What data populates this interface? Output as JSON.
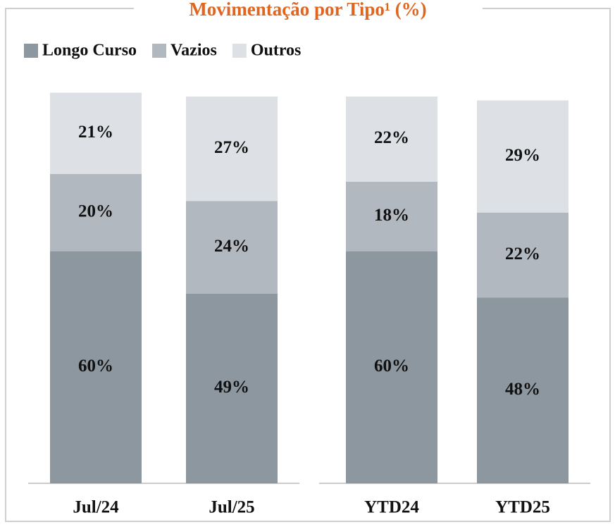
{
  "chart_data": {
    "type": "stacked_bar",
    "title": "Movimentação por Tipo¹ (%)",
    "categories": [
      "Jul/24",
      "Jul/25",
      "YTD24",
      "YTD25"
    ],
    "series": [
      {
        "name": "Longo Curso",
        "color": "#8c979f",
        "values": [
          60,
          49,
          60,
          48
        ],
        "value_labels": [
          "60%",
          "49%",
          "60%",
          "48%"
        ]
      },
      {
        "name": "Vazios",
        "color": "#b2b8bf",
        "values": [
          20,
          24,
          18,
          22
        ],
        "value_labels": [
          "20%",
          "24%",
          "18%",
          "22%"
        ]
      },
      {
        "name": "Outros",
        "color": "#dde0e4",
        "values": [
          21,
          27,
          22,
          29
        ],
        "value_labels": [
          "21%",
          "27%",
          "22%",
          "29%"
        ]
      }
    ],
    "ylim": [
      0,
      100
    ]
  }
}
